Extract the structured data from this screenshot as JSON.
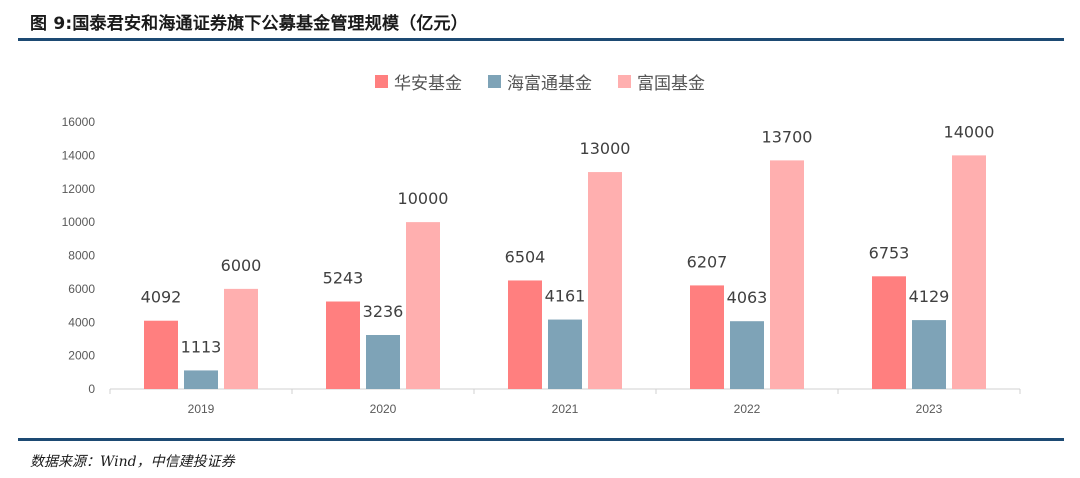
{
  "title": "图 9:国泰君安和海通证券旗下公募基金管理规模（亿元）",
  "source": "数据来源：Wind，中信建投证券",
  "chart_data": {
    "type": "bar",
    "categories": [
      "2019",
      "2020",
      "2021",
      "2022",
      "2023"
    ],
    "series": [
      {
        "name": "华安基金",
        "color": "#ff7f7f",
        "values": [
          4092,
          5243,
          6504,
          6207,
          6753
        ]
      },
      {
        "name": "海富通基金",
        "color": "#7ea3b7",
        "values": [
          1113,
          3236,
          4161,
          4063,
          4129
        ]
      },
      {
        "name": "富国基金",
        "color": "#ffafaf",
        "values": [
          6000,
          10000,
          13000,
          13700,
          14000
        ]
      }
    ],
    "ylim": [
      0,
      16000
    ],
    "yticks": [
      0,
      2000,
      4000,
      6000,
      8000,
      10000,
      12000,
      14000,
      16000
    ],
    "grid": false,
    "legend_position": "top"
  }
}
